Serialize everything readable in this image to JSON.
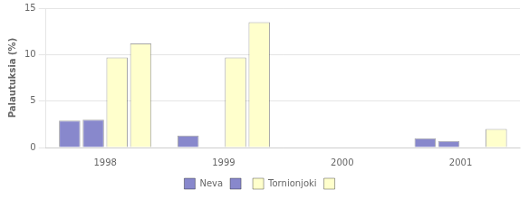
{
  "chart_data": {
    "type": "bar",
    "categories": [
      "1998",
      "1999",
      "2000",
      "2001"
    ],
    "series": [
      {
        "name": "Neva",
        "color": "#8888cc",
        "values": [
          2.9,
          1.3,
          0.0,
          1.0
        ]
      },
      {
        "color": "#8888cc",
        "values": [
          3.0,
          0.0,
          0.0,
          0.7
        ]
      },
      {
        "name": "Tornionjoki",
        "color": "#ffffcc",
        "values": [
          9.7,
          9.7,
          0.0,
          0.0
        ]
      },
      {
        "color": "#ffffcc",
        "values": [
          11.2,
          13.5,
          0.0,
          2.0
        ]
      }
    ],
    "ylabel": "Palautuksia (%)",
    "ylim": [
      0,
      15
    ],
    "yticks": [
      0,
      5,
      10,
      15
    ],
    "grid": true,
    "legend": "bottom"
  }
}
